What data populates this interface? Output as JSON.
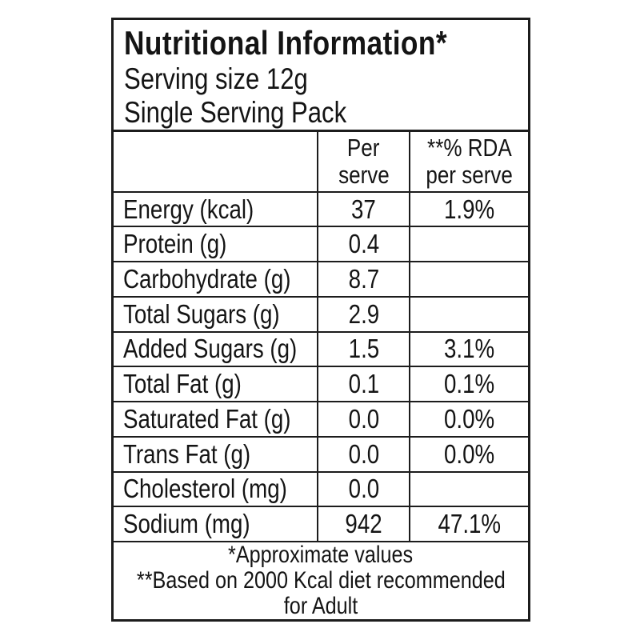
{
  "nutrition_label": {
    "title": "Nutritional Information*",
    "serving_size": "Serving size 12g",
    "pack_type": "Single Serving Pack",
    "columns": {
      "per_serve_top": "Per",
      "per_serve_bottom": "serve",
      "rda_top": "**% RDA",
      "rda_bottom": "per serve"
    },
    "rows": [
      {
        "nutrient": "Energy (kcal)",
        "per_serve": "37",
        "rda": "1.9%"
      },
      {
        "nutrient": "Protein (g)",
        "per_serve": "0.4",
        "rda": ""
      },
      {
        "nutrient": "Carbohydrate (g)",
        "per_serve": "8.7",
        "rda": ""
      },
      {
        "nutrient": "Total Sugars (g)",
        "per_serve": "2.9",
        "rda": ""
      },
      {
        "nutrient": "Added Sugars (g)",
        "per_serve": "1.5",
        "rda": "3.1%"
      },
      {
        "nutrient": "Total Fat (g)",
        "per_serve": "0.1",
        "rda": "0.1%"
      },
      {
        "nutrient": "Saturated Fat (g)",
        "per_serve": "0.0",
        "rda": "0.0%"
      },
      {
        "nutrient": "Trans Fat (g)",
        "per_serve": "0.0",
        "rda": "0.0%"
      },
      {
        "nutrient": "Cholesterol (mg)",
        "per_serve": "0.0",
        "rda": ""
      },
      {
        "nutrient": "Sodium (mg)",
        "per_serve": "942",
        "rda": "47.1%"
      }
    ],
    "footnotes": [
      "*Approximate values",
      "**Based on 2000 Kcal diet recommended",
      "for Adult"
    ],
    "colors": {
      "border": "#1c1c1c",
      "text": "#141414",
      "background": "#ffffff"
    }
  }
}
